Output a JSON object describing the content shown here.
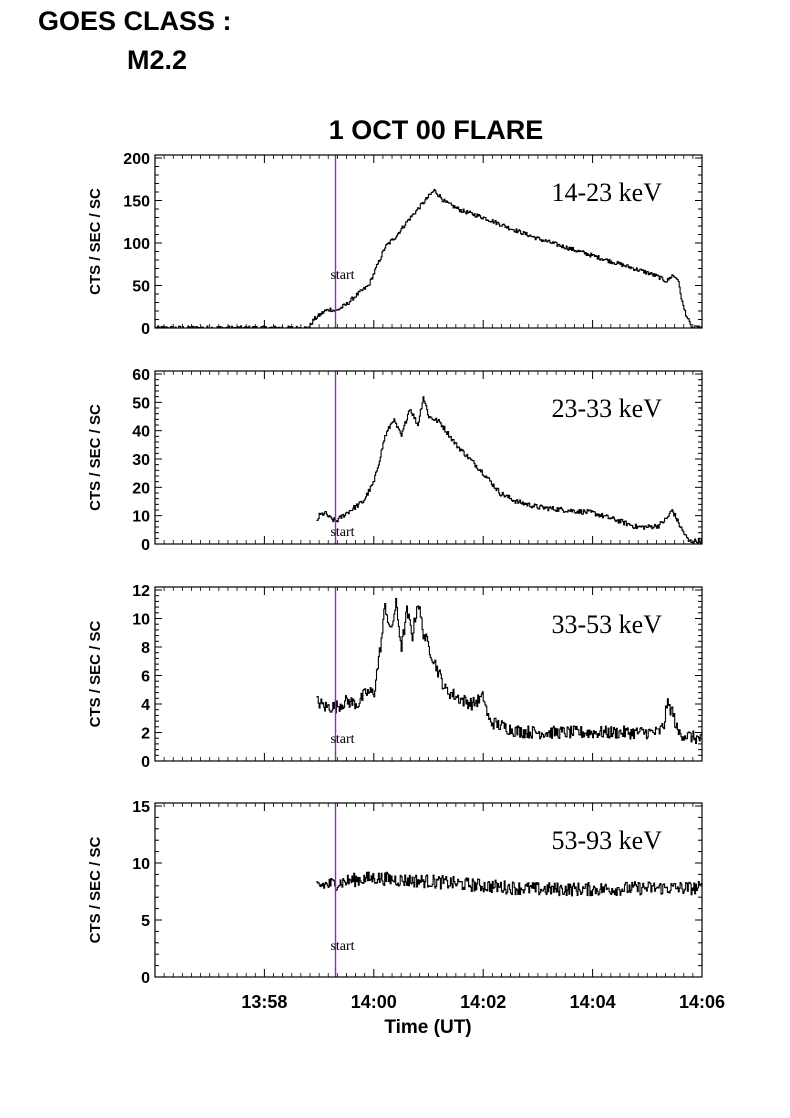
{
  "goes": {
    "label": "GOES CLASS :",
    "value": "M2.2"
  },
  "chart_data": {
    "type": "line",
    "title": "1 OCT 00 FLARE",
    "xlabel": "Time (UT)",
    "x_unit": "minutes after 13:56 UT",
    "xlim": [
      0,
      10
    ],
    "x_ticks": [
      {
        "value": 2,
        "label": "13:58"
      },
      {
        "value": 4,
        "label": "14:00"
      },
      {
        "value": 6,
        "label": "14:02"
      },
      {
        "value": 8,
        "label": "14:04"
      },
      {
        "value": 10,
        "label": "14:06"
      }
    ],
    "start_marker": {
      "x": 3.3,
      "label": "start",
      "color": "#a020c0"
    },
    "line_color": "#000000",
    "panels": [
      {
        "name": "14-23 keV",
        "ylabel": "CTS / SEC / SC",
        "ylim": [
          0,
          200
        ],
        "y_ticks": [
          0,
          50,
          100,
          150,
          200
        ],
        "noise": 2.5,
        "x": [
          0,
          2.8,
          2.9,
          3.0,
          3.1,
          3.2,
          3.3,
          3.5,
          3.7,
          3.9,
          4.0,
          4.2,
          4.4,
          4.6,
          4.8,
          5.0,
          5.1,
          5.3,
          5.6,
          6.0,
          6.5,
          7.0,
          7.5,
          8.0,
          8.5,
          9.0,
          9.2,
          9.35,
          9.45,
          9.55,
          9.65,
          9.8,
          10.0
        ],
        "y": [
          0,
          0,
          10,
          15,
          20,
          22,
          20,
          28,
          40,
          50,
          65,
          95,
          108,
          125,
          140,
          155,
          162,
          148,
          138,
          130,
          117,
          105,
          95,
          85,
          75,
          65,
          60,
          55,
          62,
          58,
          25,
          0,
          0
        ]
      },
      {
        "name": "23-33 keV",
        "ylabel": "CTS / SEC / SC",
        "ylim": [
          0,
          60
        ],
        "y_ticks": [
          0,
          10,
          20,
          30,
          40,
          50,
          60
        ],
        "noise": 0.9,
        "x": [
          2.95,
          3.0,
          3.1,
          3.2,
          3.3,
          3.5,
          3.8,
          4.0,
          4.2,
          4.35,
          4.5,
          4.65,
          4.8,
          4.9,
          5.0,
          5.2,
          5.5,
          5.8,
          6.0,
          6.3,
          6.6,
          7.0,
          7.5,
          8.0,
          8.5,
          8.8,
          9.0,
          9.2,
          9.35,
          9.45,
          9.6,
          9.75,
          10.0
        ],
        "y": [
          8,
          10,
          11,
          9,
          8,
          11,
          15,
          22,
          38,
          44,
          38,
          48,
          42,
          52,
          45,
          43,
          35,
          29,
          25,
          18,
          15,
          13,
          12,
          11,
          8,
          6,
          6,
          6.5,
          9,
          12,
          6,
          1,
          1
        ]
      },
      {
        "name": "33-53 keV",
        "ylabel": "CTS / SEC / SC",
        "ylim": [
          0,
          12
        ],
        "y_ticks": [
          0,
          2,
          4,
          6,
          8,
          10,
          12
        ],
        "noise": 0.45,
        "x": [
          2.95,
          3.1,
          3.3,
          3.5,
          3.7,
          3.85,
          4.0,
          4.15,
          4.2,
          4.3,
          4.4,
          4.5,
          4.6,
          4.7,
          4.8,
          4.9,
          5.0,
          5.15,
          5.3,
          5.6,
          5.8,
          6.0,
          6.1,
          6.3,
          6.6,
          7.0,
          7.5,
          8.0,
          8.5,
          9.0,
          9.2,
          9.3,
          9.35,
          9.45,
          9.55,
          9.7,
          10.0
        ],
        "y": [
          4.2,
          3.8,
          3.8,
          4.2,
          4.0,
          4.8,
          4.8,
          9.0,
          11.0,
          9.0,
          11.0,
          8.0,
          10.5,
          8.8,
          11.2,
          9.0,
          8.0,
          6.5,
          5.0,
          4.3,
          4.0,
          4.5,
          2.8,
          2.5,
          2.1,
          2.0,
          2.0,
          2.0,
          2.0,
          2.0,
          2.0,
          2.5,
          4.0,
          3.5,
          2.0,
          1.8,
          1.5
        ]
      },
      {
        "name": "53-93 keV",
        "ylabel": "CTS / SEC / SC",
        "ylim": [
          0,
          15
        ],
        "y_ticks": [
          0,
          5,
          10,
          15
        ],
        "noise": 0.6,
        "x": [
          2.95,
          3.3,
          3.6,
          4.0,
          4.5,
          5.0,
          5.5,
          6.0,
          7.0,
          8.0,
          9.0,
          10.0
        ],
        "y": [
          8.0,
          8.2,
          8.5,
          8.7,
          8.5,
          8.4,
          8.2,
          8.0,
          7.7,
          7.7,
          7.8,
          7.8
        ]
      }
    ]
  }
}
